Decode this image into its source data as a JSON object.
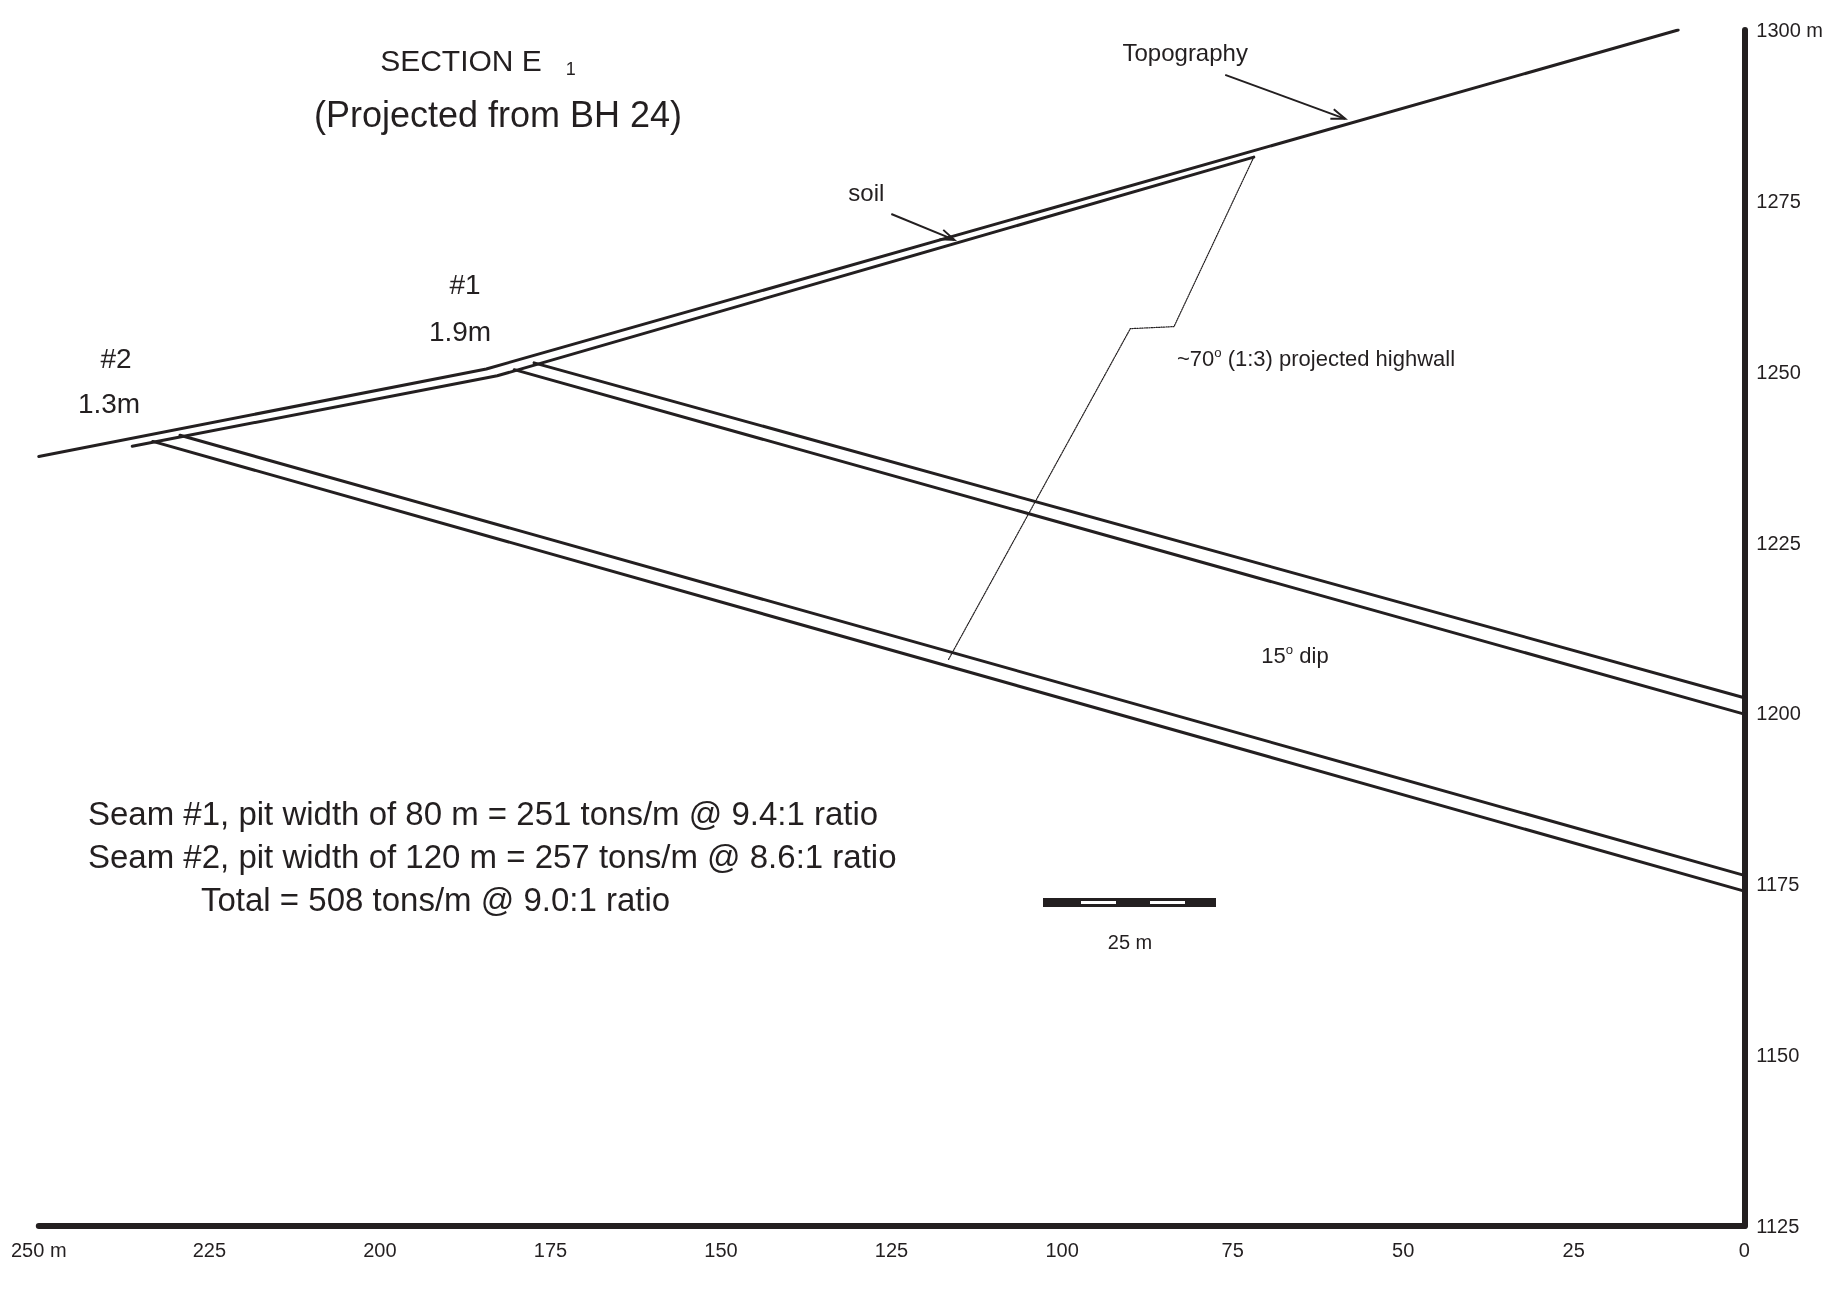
{
  "chart_data": {
    "type": "line",
    "title": "SECTION E$_{1}$",
    "subtitle": "(Projected from BH 24)",
    "xlim": [
      250,
      0
    ],
    "xticks": [
      {
        "value": 250,
        "label": "250 m"
      },
      225,
      200,
      175,
      150,
      125,
      100,
      75,
      50,
      25,
      0
    ],
    "ylim": [
      1125,
      1300
    ],
    "yticks": [
      1125,
      1150,
      1175,
      1200,
      1225,
      1250,
      1275,
      {
        "value": 1300,
        "label": "1300 m"
      }
    ],
    "grid": false,
    "series": [
      {
        "color": "#231f20",
        "x": [
          250,
          184.4,
          9.7
        ],
        "values": [
          1237.6,
          1250.4,
          1300
        ]
      },
      {
        "color": "#231f20",
        "x": [
          236.3,
          182.8,
          71.9
        ],
        "values": [
          1239.1,
          1249.4,
          1281.4
        ]
      },
      {
        "color": "#231f20",
        "x": [
          177.4,
          0
        ],
        "values": [
          1251.3,
          1202.3
        ]
      },
      {
        "color": "#231f20",
        "x": [
          180.3,
          0
        ],
        "values": [
          1250.3,
          1199.9
        ]
      },
      {
        "color": "#231f20",
        "x": [
          229.3,
          0
        ],
        "values": [
          1240.7,
          1176.3
        ]
      },
      {
        "color": "#231f20",
        "x": [
          233.3,
          0
        ],
        "values": [
          1239.8,
          1174
        ]
      },
      {
        "color": "#231f20",
        "line_style": "dotted",
        "x": [
          71.9,
          83.6,
          90,
          116.7
        ],
        "values": [
          1281.4,
          1256.6,
          1256.3,
          1207.8
        ]
      }
    ],
    "annotations": [
      {
        "text": "Topography",
        "x": 58.5,
        "y": 1287
      },
      {
        "text": "soil",
        "x": 115.8,
        "y": 1269.3
      },
      "#1",
      "1.9m",
      "#2",
      "1.3m",
      "~70$^{o}$ (1:3) projected highwall",
      "15$^{o}$ dip",
      "25 m",
      "Seam #1, pit width of 80 m = 251 tons/m @ 9.4:1 ratio",
      "Seam #2, pit width of 120 m = 257 tons/m @ 8.6:1 ratio",
      "Total = 508 tons/m @ 9.0:1 ratio"
    ]
  }
}
